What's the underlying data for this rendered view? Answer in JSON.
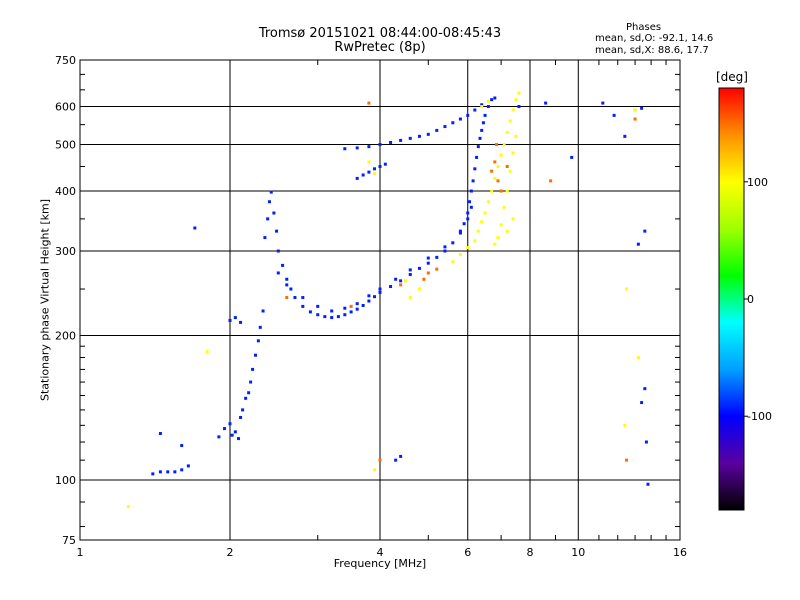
{
  "chart_data": {
    "type": "scatter",
    "title": "Tromsø 20151021 08:44:00-08:45:43",
    "subtitle": "RwPretec (8p)",
    "xlabel": "Frequency [MHz]",
    "ylabel": "Stationary phase Virtual Height [km]",
    "x_scale": "log",
    "y_scale": "log",
    "xlim": [
      1,
      16
    ],
    "ylim": [
      75,
      750
    ],
    "x_ticks": [
      1,
      2,
      4,
      6,
      8,
      10,
      16
    ],
    "x_tick_labels": [
      "1",
      "2",
      "4",
      "6",
      "8",
      "10",
      "16"
    ],
    "y_ticks": [
      75,
      100,
      200,
      300,
      400,
      500,
      600,
      750
    ],
    "y_tick_labels": [
      "75",
      "100",
      "200",
      "300",
      "400",
      "500",
      "600",
      "750"
    ],
    "grid": true,
    "legend": {
      "header": "Phases",
      "o_label": "mean, sd,O:",
      "o_values": "-92.1, 14.6",
      "x_label": "mean, sd,X:",
      "x_values": "88.6, 17.7"
    },
    "colorbar": {
      "label": "[deg]",
      "range": [
        -180,
        180
      ],
      "ticks": [
        100,
        0,
        -100
      ],
      "tick_labels": [
        "100",
        "0",
        "-100"
      ],
      "stops": [
        "#000000",
        "#5a00a0",
        "#0000ff",
        "#00a0ff",
        "#00ffff",
        "#00ff00",
        "#a0ff00",
        "#ffff00",
        "#ff9000",
        "#ff0000"
      ]
    },
    "series": [
      {
        "phase_deg": -92,
        "points": [
          [
            1.4,
            103
          ],
          [
            1.45,
            104
          ],
          [
            1.5,
            104
          ],
          [
            1.55,
            104
          ],
          [
            1.6,
            105
          ],
          [
            1.65,
            107
          ],
          [
            1.45,
            125
          ],
          [
            1.6,
            118
          ],
          [
            1.7,
            335
          ],
          [
            1.9,
            123
          ],
          [
            1.95,
            128
          ],
          [
            2.0,
            131
          ],
          [
            2.02,
            124
          ],
          [
            2.05,
            126
          ],
          [
            2.08,
            122
          ],
          [
            2.1,
            135
          ],
          [
            2.12,
            140
          ],
          [
            2.15,
            148
          ],
          [
            2.18,
            152
          ],
          [
            2.2,
            160
          ],
          [
            2.22,
            170
          ],
          [
            2.25,
            182
          ],
          [
            2.28,
            195
          ],
          [
            2.3,
            208
          ],
          [
            2.33,
            225
          ],
          [
            2.0,
            215
          ],
          [
            2.05,
            218
          ],
          [
            2.1,
            213
          ],
          [
            2.35,
            320
          ],
          [
            2.38,
            350
          ],
          [
            2.4,
            380
          ],
          [
            2.42,
            398
          ],
          [
            2.45,
            360
          ],
          [
            2.48,
            330
          ],
          [
            2.5,
            300
          ],
          [
            2.55,
            280
          ],
          [
            2.6,
            262
          ],
          [
            2.65,
            250
          ],
          [
            2.7,
            240
          ],
          [
            2.8,
            230
          ],
          [
            2.9,
            224
          ],
          [
            3.0,
            221
          ],
          [
            3.1,
            219
          ],
          [
            3.2,
            218
          ],
          [
            3.3,
            219
          ],
          [
            3.4,
            221
          ],
          [
            3.5,
            224
          ],
          [
            3.6,
            227
          ],
          [
            3.7,
            231
          ],
          [
            3.8,
            236
          ],
          [
            3.9,
            241
          ],
          [
            4.0,
            246
          ],
          [
            4.2,
            253
          ],
          [
            4.4,
            260
          ],
          [
            4.6,
            268
          ],
          [
            4.8,
            276
          ],
          [
            5.0,
            283
          ],
          [
            5.2,
            291
          ],
          [
            5.4,
            300
          ],
          [
            5.6,
            312
          ],
          [
            5.8,
            327
          ],
          [
            5.9,
            342
          ],
          [
            6.0,
            360
          ],
          [
            6.05,
            380
          ],
          [
            6.1,
            400
          ],
          [
            6.15,
            420
          ],
          [
            6.2,
            445
          ],
          [
            6.25,
            470
          ],
          [
            6.3,
            495
          ],
          [
            6.35,
            515
          ],
          [
            6.4,
            535
          ],
          [
            6.45,
            555
          ],
          [
            6.5,
            575
          ],
          [
            6.6,
            600
          ],
          [
            6.7,
            620
          ],
          [
            6.8,
            625
          ],
          [
            2.5,
            270
          ],
          [
            2.6,
            255
          ],
          [
            2.8,
            240
          ],
          [
            3.0,
            230
          ],
          [
            3.2,
            225
          ],
          [
            3.4,
            228
          ],
          [
            3.6,
            233
          ],
          [
            3.8,
            242
          ],
          [
            4.0,
            250
          ],
          [
            4.3,
            262
          ],
          [
            4.6,
            274
          ],
          [
            5.0,
            290
          ],
          [
            5.4,
            306
          ],
          [
            5.8,
            330
          ],
          [
            6.0,
            350
          ],
          [
            6.1,
            370
          ],
          [
            3.6,
            425
          ],
          [
            3.7,
            432
          ],
          [
            3.8,
            438
          ],
          [
            3.9,
            445
          ],
          [
            4.0,
            450
          ],
          [
            4.1,
            455
          ],
          [
            3.4,
            490
          ],
          [
            3.6,
            492
          ],
          [
            3.8,
            495
          ],
          [
            4.0,
            500
          ],
          [
            4.2,
            505
          ],
          [
            4.4,
            510
          ],
          [
            4.6,
            515
          ],
          [
            4.8,
            520
          ],
          [
            5.0,
            525
          ],
          [
            5.2,
            535
          ],
          [
            5.4,
            545
          ],
          [
            5.6,
            555
          ],
          [
            5.8,
            565
          ],
          [
            6.0,
            575
          ],
          [
            6.2,
            590
          ],
          [
            6.4,
            605
          ],
          [
            4.3,
            110
          ],
          [
            4.4,
            112
          ],
          [
            7.6,
            600
          ],
          [
            8.6,
            610
          ],
          [
            11.2,
            610
          ],
          [
            11.8,
            575
          ],
          [
            12.4,
            520
          ],
          [
            13.0,
            590
          ],
          [
            13.4,
            595
          ],
          [
            13.2,
            310
          ],
          [
            13.6,
            330
          ],
          [
            13.4,
            145
          ],
          [
            13.6,
            155
          ],
          [
            13.7,
            120
          ],
          [
            13.8,
            98
          ],
          [
            9.7,
            470
          ]
        ]
      },
      {
        "phase_deg": 100,
        "points": [
          [
            6.3,
            330
          ],
          [
            6.4,
            345
          ],
          [
            6.5,
            360
          ],
          [
            6.6,
            380
          ],
          [
            6.7,
            400
          ],
          [
            6.8,
            425
          ],
          [
            6.9,
            450
          ],
          [
            7.0,
            475
          ],
          [
            7.1,
            500
          ],
          [
            7.2,
            530
          ],
          [
            7.3,
            560
          ],
          [
            7.4,
            590
          ],
          [
            7.5,
            620
          ],
          [
            7.6,
            640
          ],
          [
            6.8,
            310
          ],
          [
            6.9,
            320
          ],
          [
            7.0,
            340
          ],
          [
            7.1,
            370
          ],
          [
            7.2,
            400
          ],
          [
            7.3,
            440
          ],
          [
            7.4,
            480
          ],
          [
            7.5,
            520
          ],
          [
            6.4,
            600
          ],
          [
            6.6,
            615
          ],
          [
            5.6,
            285
          ],
          [
            5.8,
            295
          ],
          [
            6.0,
            305
          ],
          [
            6.2,
            315
          ],
          [
            7.2,
            330
          ],
          [
            7.4,
            350
          ],
          [
            3.8,
            460
          ],
          [
            3.9,
            435
          ],
          [
            4.5,
            260
          ],
          [
            4.6,
            240
          ],
          [
            4.8,
            250
          ],
          [
            3.9,
            105
          ],
          [
            1.8,
            185
          ],
          [
            1.25,
            88
          ],
          [
            12.5,
            250
          ],
          [
            12.4,
            130
          ],
          [
            13.2,
            180
          ],
          [
            13.0,
            590
          ]
        ]
      },
      {
        "phase_deg": 150,
        "points": [
          [
            6.7,
            440
          ],
          [
            6.8,
            460
          ],
          [
            6.9,
            420
          ],
          [
            7.0,
            400
          ],
          [
            6.85,
            500
          ],
          [
            7.2,
            450
          ],
          [
            4.9,
            262
          ],
          [
            5.0,
            270
          ],
          [
            5.2,
            275
          ],
          [
            3.8,
            610
          ],
          [
            4.0,
            110
          ],
          [
            8.8,
            420
          ],
          [
            12.5,
            110
          ],
          [
            13.0,
            565
          ],
          [
            2.6,
            240
          ],
          [
            3.5,
            230
          ],
          [
            4.4,
            255
          ]
        ]
      }
    ]
  }
}
